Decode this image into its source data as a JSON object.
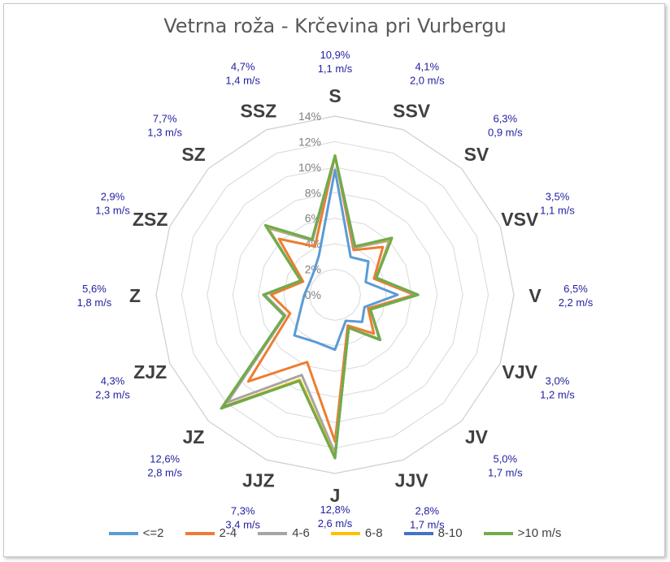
{
  "chart_data": {
    "type": "radar",
    "title": "Vetrna roža - Krčevina pri Vurbergu",
    "directions": [
      "S",
      "SSV",
      "SV",
      "VSV",
      "V",
      "VJV",
      "JV",
      "JJV",
      "J",
      "JJZ",
      "JZ",
      "ZJZ",
      "Z",
      "ZSZ",
      "SZ",
      "SSZ"
    ],
    "radial_ticks": [
      "0%",
      "2%",
      "4%",
      "6%",
      "8%",
      "10%",
      "12%",
      "14%"
    ],
    "rlim": [
      0,
      14
    ],
    "grid": true,
    "legend_position": "bottom",
    "annotations": [
      {
        "dir": "S",
        "pct": "10,9%",
        "speed": "1,1 m/s"
      },
      {
        "dir": "SSV",
        "pct": "4,1%",
        "speed": "2,0 m/s"
      },
      {
        "dir": "SV",
        "pct": "6,3%",
        "speed": "0,9 m/s"
      },
      {
        "dir": "VSV",
        "pct": "3,5%",
        "speed": "1,1 m/s"
      },
      {
        "dir": "V",
        "pct": "6,5%",
        "speed": "2,2 m/s"
      },
      {
        "dir": "VJV",
        "pct": "3,0%",
        "speed": "1,2 m/s"
      },
      {
        "dir": "JV",
        "pct": "5,0%",
        "speed": "1,7 m/s"
      },
      {
        "dir": "JJV",
        "pct": "2,8%",
        "speed": "1,7 m/s"
      },
      {
        "dir": "J",
        "pct": "12,8%",
        "speed": "2,6 m/s"
      },
      {
        "dir": "JJZ",
        "pct": "7,3%",
        "speed": "3,4 m/s"
      },
      {
        "dir": "JZ",
        "pct": "12,6%",
        "speed": "2,8 m/s"
      },
      {
        "dir": "ZJZ",
        "pct": "4,3%",
        "speed": "2,3 m/s"
      },
      {
        "dir": "Z",
        "pct": "5,6%",
        "speed": "1,8 m/s"
      },
      {
        "dir": "ZSZ",
        "pct": "2,9%",
        "speed": "1,3 m/s"
      },
      {
        "dir": "SZ",
        "pct": "7,7%",
        "speed": "1,3 m/s"
      },
      {
        "dir": "SSZ",
        "pct": "4,7%",
        "speed": "1,4 m/s"
      }
    ],
    "series": [
      {
        "name": "<=2",
        "color": "#5b9bd5",
        "values": [
          9.8,
          3.2,
          3.7,
          2.6,
          4.9,
          2.5,
          3.0,
          2.2,
          4.3,
          4.0,
          4.5,
          2.9,
          2.4,
          2.2,
          2.4,
          3.3
        ]
      },
      {
        "name": "2-4",
        "color": "#ed7d31",
        "values": [
          10.9,
          3.8,
          5.3,
          3.3,
          6.2,
          2.8,
          4.3,
          2.6,
          11.5,
          5.7,
          9.6,
          3.8,
          5.0,
          2.7,
          6.2,
          4.1
        ]
      },
      {
        "name": "4-6",
        "color": "#a5a5a5",
        "values": [
          10.9,
          4.0,
          6.0,
          3.5,
          6.4,
          3.0,
          4.9,
          2.8,
          12.4,
          6.8,
          11.9,
          4.2,
          5.5,
          2.9,
          7.4,
          4.6
        ]
      },
      {
        "name": "6-8",
        "color": "#ffc000",
        "values": [
          10.9,
          4.1,
          6.2,
          3.5,
          6.5,
          3.0,
          5.0,
          2.8,
          12.7,
          7.2,
          12.4,
          4.3,
          5.6,
          2.9,
          7.6,
          4.7
        ]
      },
      {
        "name": "8-10",
        "color": "#4472c4",
        "values": [
          10.9,
          4.1,
          6.3,
          3.5,
          6.5,
          3.0,
          5.0,
          2.8,
          12.8,
          7.3,
          12.5,
          4.3,
          5.6,
          2.9,
          7.7,
          4.7
        ]
      },
      {
        "name": ">10 m/s",
        "color": "#70ad47",
        "values": [
          10.9,
          4.1,
          6.3,
          3.5,
          6.5,
          3.0,
          5.0,
          2.8,
          12.8,
          7.3,
          12.6,
          4.3,
          5.6,
          2.9,
          7.7,
          4.7
        ]
      }
    ]
  }
}
